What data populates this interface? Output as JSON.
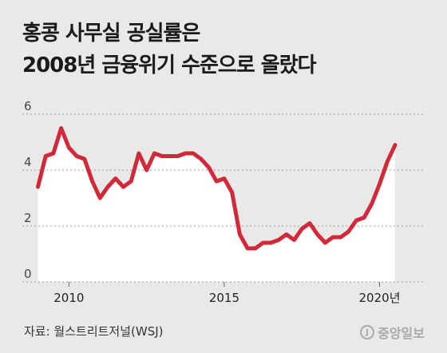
{
  "header": {
    "title_line1": "홍콩 사무실 공실률은",
    "title_line2": "2008년 금융위기 수준으로 올랐다"
  },
  "footer": {
    "source": "자료: 월스트리트저널(WSJ)",
    "logo_text": "중앙일보",
    "logo_mark": "J"
  },
  "colors": {
    "line": "#d1283a",
    "fill": "#ffffff",
    "background": "#e9e9e7",
    "grid": "#9a9a9a"
  },
  "chart_data": {
    "type": "area",
    "title": "홍콩 사무실 공실률은 2008년 금융위기 수준으로 올랐다",
    "xlabel": "",
    "ylabel": "",
    "xlim": [
      2008.5,
      2021.4
    ],
    "ylim": [
      0,
      6
    ],
    "yticks": [
      0,
      2,
      4,
      6
    ],
    "xticks": [
      {
        "value": 2010,
        "label": "2010"
      },
      {
        "value": 2015,
        "label": "2015"
      },
      {
        "value": 2020,
        "label": "2020년"
      }
    ],
    "grid": "horizontal dashed",
    "series": [
      {
        "x": [
          2009.0,
          2009.25,
          2009.5,
          2009.75,
          2010.0,
          2010.25,
          2010.5,
          2010.75,
          2011.0,
          2011.25,
          2011.5,
          2011.75,
          2012.0,
          2012.25,
          2012.5,
          2012.75,
          2013.0,
          2013.25,
          2013.5,
          2013.75,
          2014.0,
          2014.25,
          2014.5,
          2014.75,
          2015.0,
          2015.25,
          2015.5,
          2015.75,
          2016.0,
          2016.25,
          2016.5,
          2016.75,
          2017.0,
          2017.25,
          2017.5,
          2017.75,
          2018.0,
          2018.25,
          2018.5,
          2018.75,
          2019.0,
          2019.25,
          2019.5,
          2019.75,
          2020.0,
          2020.25,
          2020.5
        ],
        "values": [
          3.4,
          4.5,
          4.6,
          5.5,
          4.8,
          4.5,
          4.4,
          3.6,
          3.0,
          3.4,
          3.7,
          3.4,
          3.6,
          4.6,
          4.0,
          4.6,
          4.5,
          4.5,
          4.5,
          4.6,
          4.6,
          4.4,
          4.1,
          3.6,
          3.7,
          3.2,
          1.7,
          1.2,
          1.2,
          1.4,
          1.4,
          1.5,
          1.7,
          1.5,
          1.9,
          2.1,
          1.7,
          1.4,
          1.6,
          1.6,
          1.8,
          2.2,
          2.3,
          2.8,
          3.5,
          4.3,
          4.9
        ]
      }
    ]
  }
}
